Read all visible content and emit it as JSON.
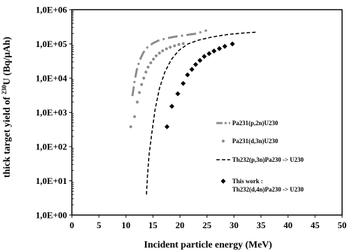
{
  "chart_data": {
    "type": "line",
    "xlabel": "Incident particle energy (MeV)",
    "ylabel_parts": {
      "pre": "thick target yield of ",
      "sup": "230",
      "post": "U  (Bq/µAh)"
    },
    "xlim": [
      0,
      50
    ],
    "ylim": [
      1,
      1000000
    ],
    "y_scale": "log",
    "x_ticks": [
      "0",
      "5",
      "10",
      "15",
      "20",
      "25",
      "30",
      "35",
      "40",
      "45",
      "50"
    ],
    "y_ticks": [
      "1,0E+00",
      "1,0E+01",
      "1,0E+02",
      "1,0E+03",
      "1,0E+04",
      "1,0E+05",
      "1,0E+06"
    ],
    "grid": false,
    "legend_position": "bottom-right inside",
    "series": [
      {
        "name": "Pa231(p,2n)U230",
        "style": "dash-dot",
        "color": "#8c8c8c",
        "points": [
          [
            11.2,
            3000
          ],
          [
            11.6,
            8000
          ],
          [
            12.0,
            17000
          ],
          [
            12.5,
            32000
          ],
          [
            13.2,
            55000
          ],
          [
            14.0,
            80000
          ],
          [
            15.0,
            105000
          ],
          [
            16.0,
            125000
          ],
          [
            17.5,
            145000
          ],
          [
            19.0,
            162000
          ],
          [
            21.0,
            180000
          ],
          [
            23.0,
            200000
          ],
          [
            25.0,
            250000
          ]
        ]
      },
      {
        "name": "Pa231(d,3n)U230",
        "style": "dots",
        "color": "#8c8c8c",
        "points": [
          [
            10.9,
            380
          ],
          [
            11.6,
            750
          ],
          [
            12.1,
            2000
          ],
          [
            12.5,
            3800
          ],
          [
            12.9,
            6500
          ],
          [
            13.3,
            10000
          ],
          [
            13.7,
            15000
          ],
          [
            14.1,
            21000
          ],
          [
            14.6,
            28000
          ],
          [
            15.1,
            36000
          ],
          [
            15.6,
            45000
          ],
          [
            16.2,
            54000
          ],
          [
            16.8,
            63000
          ],
          [
            17.5,
            72000
          ],
          [
            18.2,
            80000
          ],
          [
            19.0,
            88000
          ],
          [
            19.8,
            96000
          ],
          [
            20.6,
            102000
          ]
        ]
      },
      {
        "name": "Th232(p,3n)Pa230 -> U230",
        "style": "dashed",
        "color": "#000000",
        "points": [
          [
            13.8,
            4
          ],
          [
            14.0,
            15
          ],
          [
            14.3,
            60
          ],
          [
            14.8,
            250
          ],
          [
            15.4,
            1200
          ],
          [
            16.2,
            5000
          ],
          [
            17.2,
            15000
          ],
          [
            18.4,
            35000
          ],
          [
            19.8,
            65000
          ],
          [
            21.5,
            100000
          ],
          [
            23.5,
            130000
          ],
          [
            26.0,
            160000
          ],
          [
            29.0,
            190000
          ],
          [
            32.0,
            210000
          ],
          [
            34.0,
            220000
          ]
        ]
      },
      {
        "name": "This work :\nTh232(d,4n)Pa230 -> U230",
        "style": "diamonds",
        "color": "#000000",
        "points": [
          [
            17.6,
            380
          ],
          [
            18.5,
            1500
          ],
          [
            19.6,
            3500
          ],
          [
            20.6,
            7000
          ],
          [
            21.4,
            12500
          ],
          [
            22.2,
            18000
          ],
          [
            22.9,
            25000
          ],
          [
            23.7,
            33000
          ],
          [
            24.5,
            43000
          ],
          [
            25.4,
            52000
          ],
          [
            26.3,
            62000
          ],
          [
            27.3,
            73000
          ],
          [
            28.3,
            85000
          ],
          [
            29.7,
            100000
          ]
        ]
      }
    ]
  }
}
